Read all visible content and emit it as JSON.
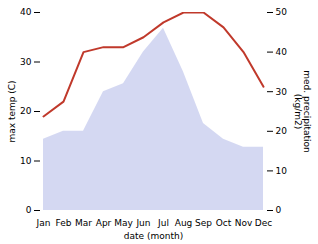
{
  "chart_data": {
    "type": "line",
    "categories": [
      "Jan",
      "Feb",
      "Mar",
      "Apr",
      "May",
      "Jun",
      "Jul",
      "Aug",
      "Sep",
      "Oct",
      "Nov",
      "Dec"
    ],
    "series": [
      {
        "type": "area",
        "axis": "y2",
        "color": "#b0b8e8",
        "values": [
          18,
          20,
          20,
          30,
          32,
          40,
          46,
          35,
          22,
          18,
          16,
          16
        ]
      },
      {
        "type": "line",
        "color": "#c0392b",
        "values": [
          19,
          22,
          32,
          33,
          33,
          35,
          38,
          40,
          40,
          37,
          32,
          25
        ]
      }
    ],
    "xlabel": "date (month)",
    "ylabel": "max temp (C)",
    "y2label": "med. precipitation\n(kg/m2)",
    "ylim": [
      0,
      40
    ],
    "yticks": [
      0,
      10,
      20,
      30,
      40
    ],
    "y2lim": [
      0,
      50
    ],
    "y2ticks": [
      0,
      10,
      20,
      30,
      40,
      50
    ]
  }
}
